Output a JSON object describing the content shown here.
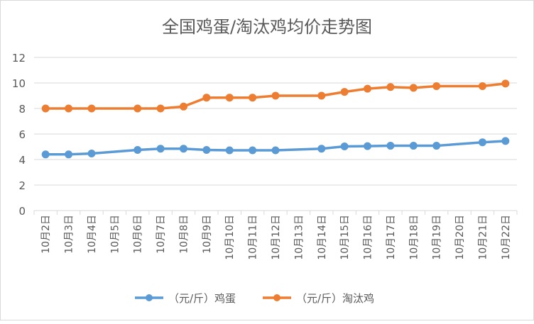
{
  "chart_data": {
    "type": "line",
    "title": "全国鸡蛋/淘汰鸡均价走势图",
    "categories": [
      "10月2日",
      "10月3日",
      "10月4日",
      "10月5日",
      "10月6日",
      "10月7日",
      "10月8日",
      "10月9日",
      "10月10日",
      "10月11日",
      "10月12日",
      "10月13日",
      "10月14日",
      "10月15日",
      "10月16日",
      "10月17日",
      "10月18日",
      "10月19日",
      "10月20日",
      "10月21日",
      "10月22日"
    ],
    "ylim": [
      0,
      12
    ],
    "yticks": [
      "0",
      "2",
      "4",
      "6",
      "8",
      "10",
      "12"
    ],
    "grid": true,
    "legend_position": "bottom",
    "series": [
      {
        "name": "（元/斤）鸡蛋",
        "color": "#5b9bd5",
        "values": [
          4.4,
          4.4,
          4.47,
          null,
          4.75,
          4.85,
          4.85,
          4.75,
          4.72,
          4.72,
          4.72,
          null,
          4.85,
          5.03,
          5.05,
          5.08,
          5.08,
          5.08,
          null,
          5.35,
          5.45
        ]
      },
      {
        "name": "（元/斤）淘汰鸡",
        "color": "#ed7d31",
        "values": [
          8.0,
          8.0,
          8.0,
          null,
          8.0,
          8.0,
          8.15,
          8.85,
          8.85,
          8.85,
          9.0,
          null,
          9.0,
          9.3,
          9.55,
          9.68,
          9.62,
          9.75,
          null,
          9.75,
          9.95
        ]
      }
    ]
  }
}
